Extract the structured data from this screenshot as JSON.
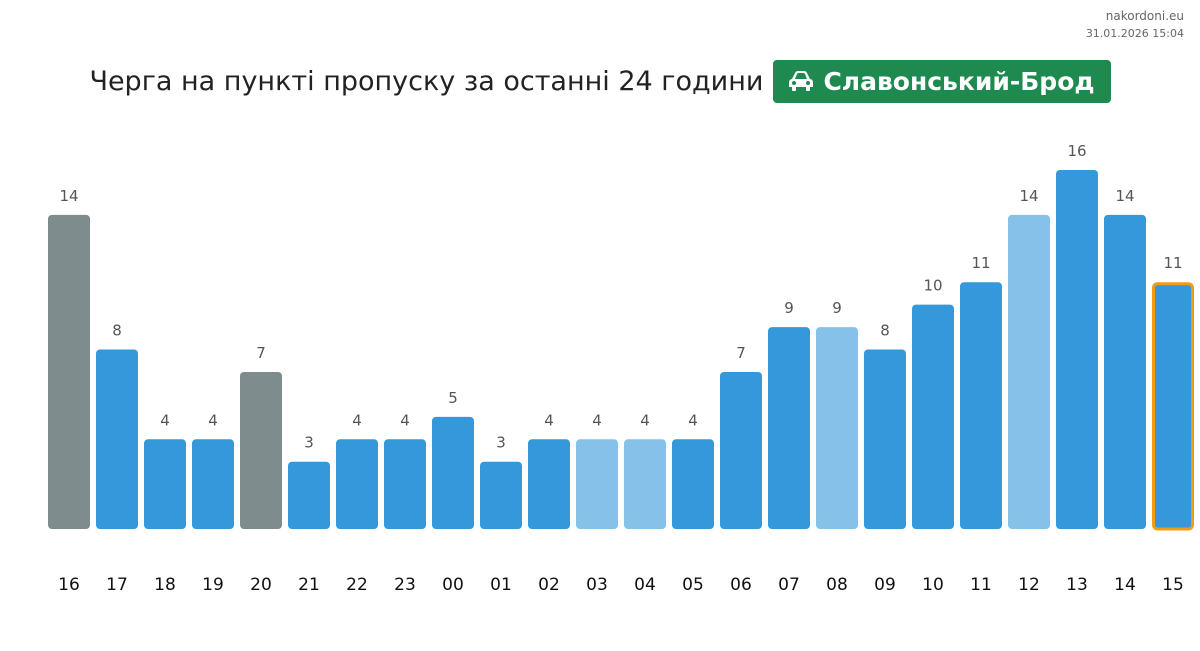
{
  "meta": {
    "site": "nakordoni.eu",
    "timestamp": "31.01.2026 15:04"
  },
  "header": {
    "title": "Черга на пункті пропуску за останні 24 години",
    "checkpoint": "Славонський-Брод",
    "checkpoint_icon": "car-icon",
    "badge_color": "#1e8a4f"
  },
  "chart_data": {
    "type": "bar",
    "title": "Черга на пункті пропуску за останні 24 години",
    "xlabel": "",
    "ylabel": "",
    "ylim": [
      0,
      16
    ],
    "grid": false,
    "categories": [
      "16",
      "17",
      "18",
      "19",
      "20",
      "21",
      "22",
      "23",
      "00",
      "01",
      "02",
      "03",
      "04",
      "05",
      "06",
      "07",
      "08",
      "09",
      "10",
      "11",
      "12",
      "13",
      "14",
      "15"
    ],
    "values": [
      14,
      8,
      4,
      4,
      7,
      3,
      4,
      4,
      5,
      3,
      4,
      4,
      4,
      4,
      7,
      9,
      9,
      8,
      10,
      11,
      14,
      16,
      14,
      11
    ],
    "bar_colors": [
      "#7f8c8d",
      "#3498db",
      "#3498db",
      "#3498db",
      "#7f8c8d",
      "#3498db",
      "#3498db",
      "#3498db",
      "#3498db",
      "#3498db",
      "#3498db",
      "#85c1e9",
      "#85c1e9",
      "#3498db",
      "#3498db",
      "#3498db",
      "#85c1e9",
      "#3498db",
      "#3498db",
      "#3498db",
      "#85c1e9",
      "#3498db",
      "#3498db",
      "#3498db"
    ],
    "highlight_index": 23,
    "highlight_color": "#f39c12"
  }
}
